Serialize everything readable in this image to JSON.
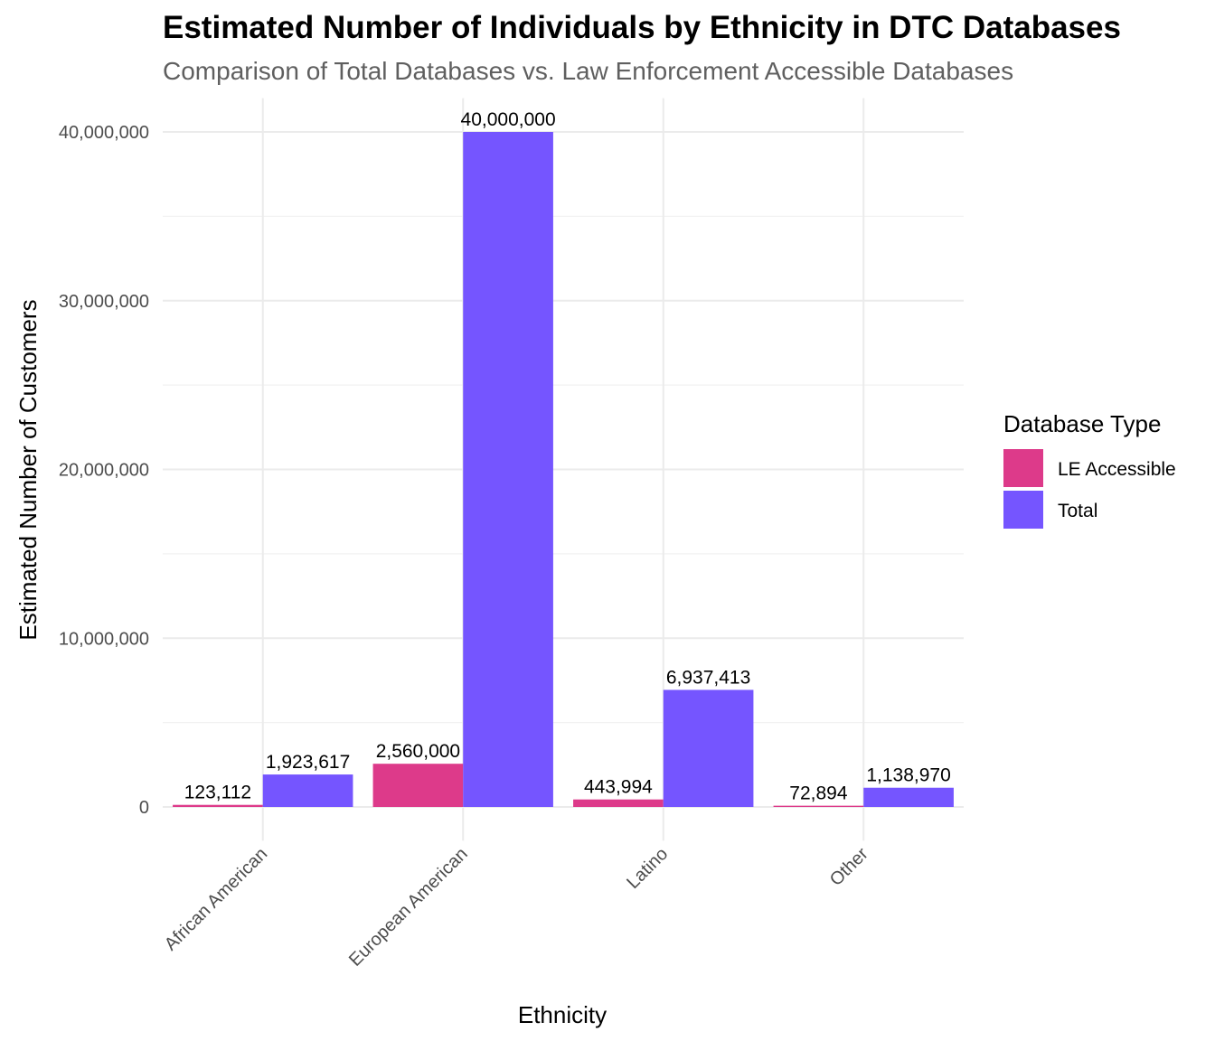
{
  "chart_data": {
    "type": "bar",
    "title": "Estimated Number of Individuals by Ethnicity in DTC Databases",
    "subtitle": "Comparison of Total Databases vs. Law Enforcement Accessible Databases",
    "xlabel": "Ethnicity",
    "ylabel": "Estimated Number of Customers",
    "categories": [
      "African American",
      "European American",
      "Latino",
      "Other"
    ],
    "series": [
      {
        "name": "LE Accessible",
        "color": "#DD3A8A",
        "values": [
          123112,
          2560000,
          443994,
          72894
        ],
        "labels": [
          "123,112",
          "2,560,000",
          "443,994",
          "72,894"
        ]
      },
      {
        "name": "Total",
        "color": "#7555FF",
        "values": [
          1923617,
          40000000,
          6937413,
          1138970
        ],
        "labels": [
          "1,923,617",
          "40,000,000",
          "6,937,413",
          "1,138,970"
        ]
      }
    ],
    "ylim": [
      -2000000,
      42000000
    ],
    "yticks": [
      0,
      10000000,
      20000000,
      30000000,
      40000000
    ],
    "ytick_labels": [
      "0",
      "10,000,000",
      "20,000,000",
      "30,000,000",
      "40,000,000"
    ],
    "legend": {
      "title": "Database Type",
      "position": "right"
    },
    "grid": true
  }
}
